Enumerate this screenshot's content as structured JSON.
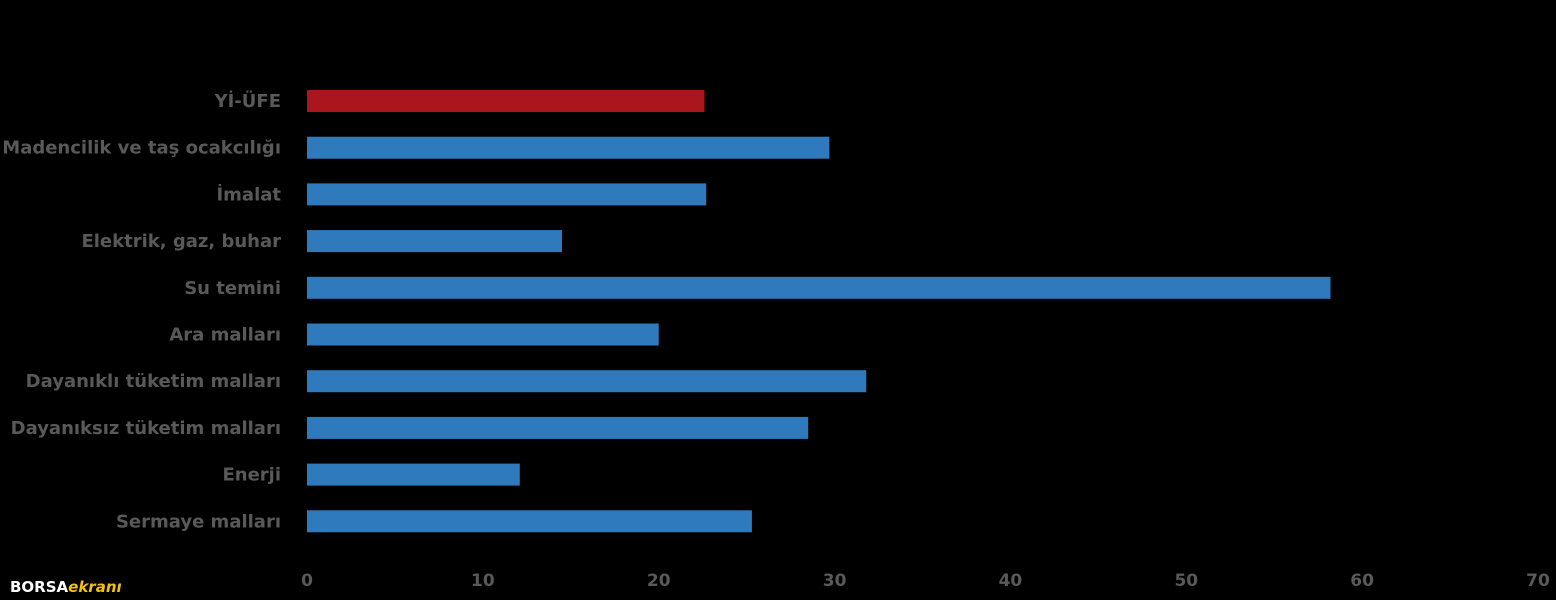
{
  "chart_data": {
    "type": "bar",
    "orientation": "horizontal",
    "categories": [
      "Yİ-ÜFE",
      "Madencilik ve taş ocakcılığı",
      "İmalat",
      "Elektrik, gaz, buhar",
      "Su temini",
      "Ara malları",
      "Dayanıklı tüketim malları",
      "Dayanıksız tüketim malları",
      "Enerji",
      "Sermaye malları"
    ],
    "values": [
      22.6,
      29.7,
      22.7,
      14.5,
      58.2,
      20.0,
      31.8,
      28.5,
      12.1,
      25.3
    ],
    "colors": [
      "#ab161d",
      "#2e7abd",
      "#2e7abd",
      "#2e7abd",
      "#2e7abd",
      "#2e7abd",
      "#2e7abd",
      "#2e7abd",
      "#2e7abd",
      "#2e7abd"
    ],
    "xlim": [
      0,
      70
    ],
    "xticks": [
      0,
      10,
      20,
      30,
      40,
      50,
      60,
      70
    ],
    "grid": false,
    "legend": "none"
  },
  "logo": {
    "text_main": "BORSA",
    "text_accent": "ekranı"
  }
}
